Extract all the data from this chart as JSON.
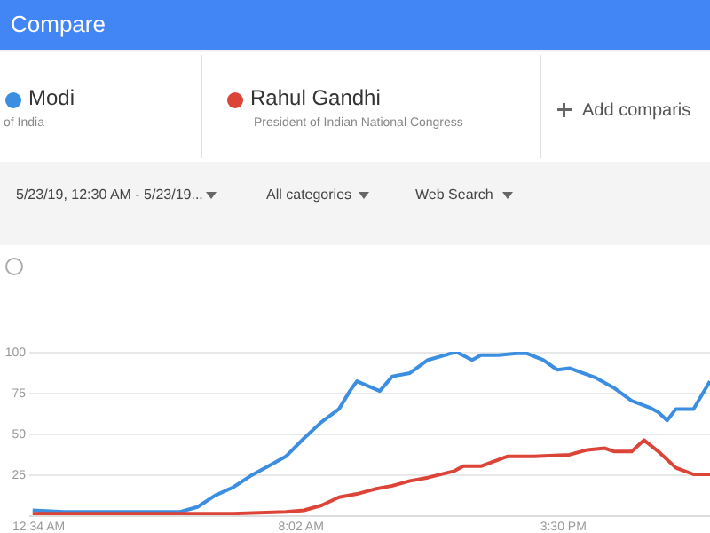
{
  "chart_data": {
    "type": "line",
    "title": "Compare",
    "legend": "top",
    "grid": "y",
    "annotations": [
      "of India",
      "President of Indian National Congress",
      "Add comparis",
      "5/23/19, 12:30 AM - 5/23/19...",
      "All categories",
      "Web Search"
    ],
    "xlim": [
      0.3,
      19.7
    ],
    "xticks": [
      {
        "value": 0.567,
        "label": "12:34 AM"
      },
      {
        "value": 8.033,
        "label": "8:02 AM"
      },
      {
        "value": 15.5,
        "label": "3:30 PM"
      }
    ],
    "ylim": [
      0,
      100
    ],
    "yticks": [
      {
        "value": 0,
        "label": null
      },
      25,
      50,
      75,
      100
    ],
    "series": [
      {
        "name": "Modi",
        "color": "#3b8ee0",
        "x": [
          0.42,
          1.32,
          2.59,
          4.1,
          4.6,
          5.11,
          5.61,
          6.12,
          6.62,
          7.13,
          7.63,
          8.14,
          8.64,
          9.14,
          9.45,
          9.65,
          10.3,
          10.66,
          11.16,
          11.67,
          12.17,
          12.47,
          12.93,
          13.18,
          13.68,
          14.19,
          14.49,
          14.95,
          15.35,
          15.7,
          16.46,
          16.96,
          17.47,
          17.97,
          18.23,
          18.48,
          18.73,
          19.23,
          19.7
        ],
        "values": [
          3,
          2,
          2,
          2,
          2,
          5,
          12,
          17,
          24,
          30,
          36,
          47,
          57,
          65,
          76,
          82,
          76,
          85,
          87,
          95,
          98,
          100,
          95,
          98,
          98,
          99,
          99,
          95,
          89,
          90,
          84,
          78,
          70,
          66,
          63,
          58,
          65,
          65,
          82
        ]
      },
      {
        "name": "Rahul Gandhi",
        "color": "#db4437",
        "x": [
          0.42,
          4.1,
          6.12,
          7.63,
          8.14,
          8.64,
          9.14,
          9.65,
          10.16,
          10.66,
          11.16,
          11.67,
          12.42,
          12.68,
          13.18,
          13.93,
          14.69,
          15.7,
          16.21,
          16.71,
          16.96,
          17.47,
          17.82,
          18.23,
          18.73,
          19.23,
          19.7
        ],
        "values": [
          1,
          1,
          1,
          2,
          3,
          6,
          11,
          13,
          16,
          18,
          21,
          23,
          27,
          30,
          30,
          36,
          36,
          37,
          40,
          41,
          39,
          39,
          46,
          39,
          29,
          25,
          25
        ]
      }
    ]
  }
}
